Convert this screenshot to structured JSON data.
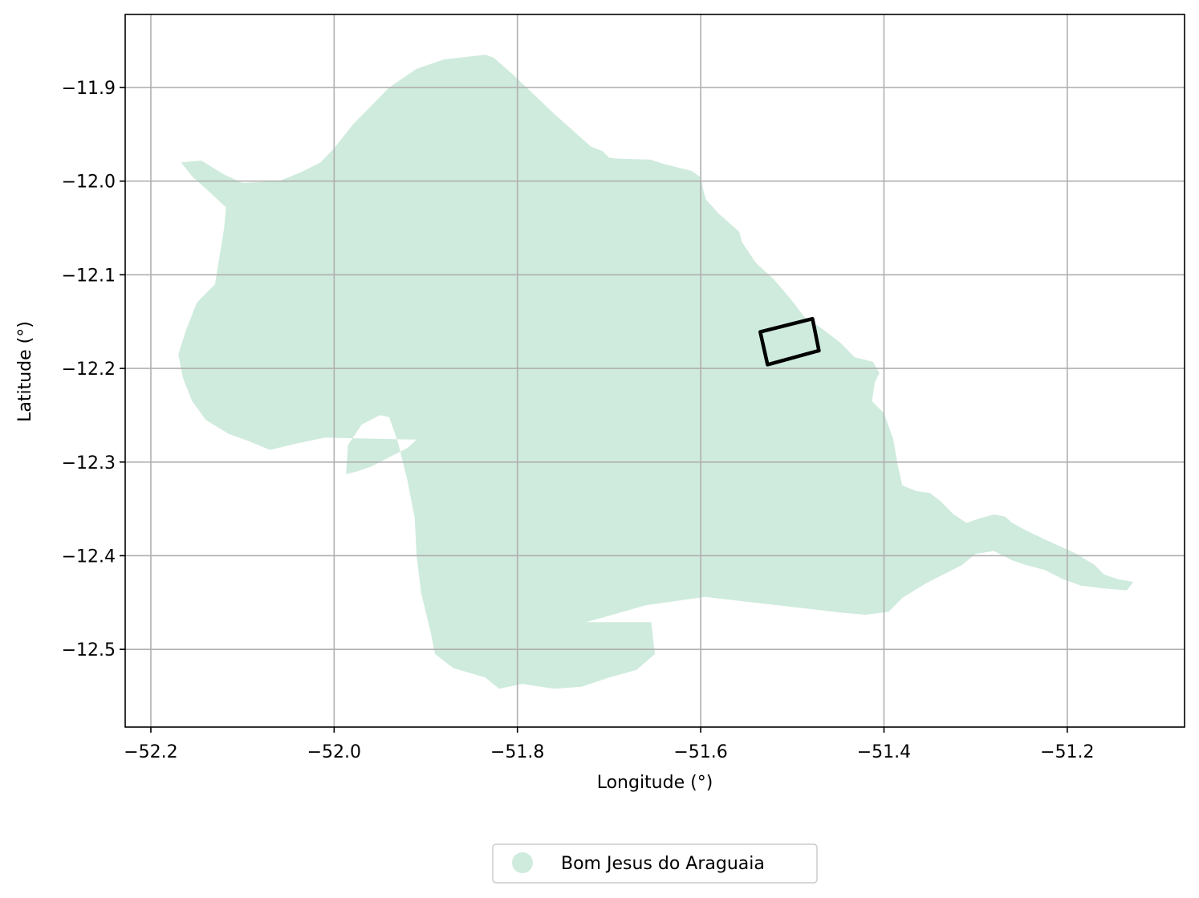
{
  "chart_data": {
    "type": "map",
    "xlabel": "Longitude (°)",
    "ylabel": "Latitude (°)",
    "xlim": [
      -52.228,
      -51.072
    ],
    "ylim": [
      -12.583,
      -11.822
    ],
    "grid": true,
    "legend_placement": "bottom-center",
    "x_ticks": [
      {
        "value": -52.2,
        "label": "−52.2"
      },
      {
        "value": -52.0,
        "label": "−52.0"
      },
      {
        "value": -51.8,
        "label": "−51.8"
      },
      {
        "value": -51.6,
        "label": "−51.6"
      },
      {
        "value": -51.4,
        "label": "−51.4"
      },
      {
        "value": -51.2,
        "label": "−51.2"
      }
    ],
    "y_ticks": [
      {
        "value": -11.9,
        "label": "−11.9"
      },
      {
        "value": -12.0,
        "label": "−12.0"
      },
      {
        "value": -12.1,
        "label": "−12.1"
      },
      {
        "value": -12.2,
        "label": "−12.2"
      },
      {
        "value": -12.3,
        "label": "−12.3"
      },
      {
        "value": -12.4,
        "label": "−12.4"
      },
      {
        "value": -12.5,
        "label": "−12.5"
      }
    ],
    "layers": [
      {
        "name": "Bom Jesus do Araguaia",
        "color": "#cfebdd",
        "polygon": [
          [
            -51.835,
            -11.865
          ],
          [
            -51.826,
            -11.868
          ],
          [
            -51.805,
            -11.886
          ],
          [
            -51.76,
            -11.928
          ],
          [
            -51.72,
            -11.963
          ],
          [
            -51.707,
            -11.968
          ],
          [
            -51.7,
            -11.975
          ],
          [
            -51.69,
            -11.976
          ],
          [
            -51.655,
            -11.977
          ],
          [
            -51.639,
            -11.982
          ],
          [
            -51.61,
            -11.989
          ],
          [
            -51.6,
            -11.996
          ],
          [
            -51.597,
            -12.01
          ],
          [
            -51.594,
            -12.02
          ],
          [
            -51.58,
            -12.035
          ],
          [
            -51.558,
            -12.054
          ],
          [
            -51.555,
            -12.065
          ],
          [
            -51.54,
            -12.087
          ],
          [
            -51.52,
            -12.105
          ],
          [
            -51.5,
            -12.128
          ],
          [
            -51.487,
            -12.145
          ],
          [
            -51.467,
            -12.158
          ],
          [
            -51.447,
            -12.173
          ],
          [
            -51.432,
            -12.188
          ],
          [
            -51.412,
            -12.193
          ],
          [
            -51.405,
            -12.205
          ],
          [
            -51.41,
            -12.215
          ],
          [
            -51.413,
            -12.235
          ],
          [
            -51.4,
            -12.248
          ],
          [
            -51.39,
            -12.275
          ],
          [
            -51.385,
            -12.303
          ],
          [
            -51.38,
            -12.325
          ],
          [
            -51.365,
            -12.331
          ],
          [
            -51.35,
            -12.333
          ],
          [
            -51.338,
            -12.342
          ],
          [
            -51.325,
            -12.355
          ],
          [
            -51.31,
            -12.365
          ],
          [
            -51.295,
            -12.36
          ],
          [
            -51.28,
            -12.356
          ],
          [
            -51.268,
            -12.358
          ],
          [
            -51.26,
            -12.365
          ],
          [
            -51.245,
            -12.373
          ],
          [
            -51.228,
            -12.381
          ],
          [
            -51.21,
            -12.389
          ],
          [
            -51.19,
            -12.398
          ],
          [
            -51.17,
            -12.41
          ],
          [
            -51.16,
            -12.42
          ],
          [
            -51.145,
            -12.425
          ],
          [
            -51.128,
            -12.428
          ],
          [
            -51.135,
            -12.437
          ],
          [
            -51.16,
            -12.435
          ],
          [
            -51.185,
            -12.432
          ],
          [
            -51.205,
            -12.425
          ],
          [
            -51.225,
            -12.415
          ],
          [
            -51.245,
            -12.41
          ],
          [
            -51.26,
            -12.405
          ],
          [
            -51.28,
            -12.395
          ],
          [
            -51.3,
            -12.398
          ],
          [
            -51.315,
            -12.41
          ],
          [
            -51.335,
            -12.42
          ],
          [
            -51.355,
            -12.43
          ],
          [
            -51.38,
            -12.445
          ],
          [
            -51.395,
            -12.46
          ],
          [
            -51.42,
            -12.463
          ],
          [
            -51.445,
            -12.461
          ],
          [
            -51.595,
            -12.444
          ],
          [
            -51.66,
            -12.453
          ],
          [
            -51.725,
            -12.471
          ],
          [
            -51.654,
            -12.471
          ],
          [
            -51.65,
            -12.505
          ],
          [
            -51.67,
            -12.522
          ],
          [
            -51.7,
            -12.53
          ],
          [
            -51.73,
            -12.54
          ],
          [
            -51.76,
            -12.542
          ],
          [
            -51.795,
            -12.537
          ],
          [
            -51.82,
            -12.542
          ],
          [
            -51.835,
            -12.53
          ],
          [
            -51.87,
            -12.52
          ],
          [
            -51.89,
            -12.505
          ],
          [
            -51.895,
            -12.48
          ],
          [
            -51.905,
            -12.44
          ],
          [
            -51.91,
            -12.4
          ],
          [
            -51.912,
            -12.36
          ],
          [
            -51.92,
            -12.32
          ],
          [
            -51.93,
            -12.28
          ],
          [
            -51.94,
            -12.252
          ],
          [
            -51.95,
            -12.25
          ],
          [
            -51.97,
            -12.26
          ],
          [
            -51.985,
            -12.282
          ],
          [
            -51.987,
            -12.313
          ],
          [
            -51.975,
            -12.31
          ],
          [
            -51.96,
            -12.305
          ],
          [
            -51.94,
            -12.295
          ],
          [
            -51.92,
            -12.285
          ],
          [
            -51.91,
            -12.276
          ],
          [
            -52.01,
            -12.274
          ],
          [
            -52.04,
            -12.28
          ],
          [
            -52.07,
            -12.287
          ],
          [
            -52.095,
            -12.277
          ],
          [
            -52.115,
            -12.27
          ],
          [
            -52.14,
            -12.255
          ],
          [
            -52.155,
            -12.235
          ],
          [
            -52.165,
            -12.21
          ],
          [
            -52.17,
            -12.185
          ],
          [
            -52.162,
            -12.16
          ],
          [
            -52.15,
            -12.13
          ],
          [
            -52.13,
            -12.11
          ],
          [
            -52.125,
            -12.08
          ],
          [
            -52.12,
            -12.05
          ],
          [
            -52.118,
            -12.028
          ],
          [
            -52.14,
            -12.008
          ],
          [
            -52.155,
            -11.995
          ],
          [
            -52.167,
            -11.98
          ],
          [
            -52.145,
            -11.978
          ],
          [
            -52.12,
            -11.993
          ],
          [
            -52.1,
            -12.002
          ],
          [
            -52.06,
            -12.0
          ],
          [
            -52.035,
            -11.99
          ],
          [
            -52.015,
            -11.98
          ],
          [
            -52.0,
            -11.965
          ],
          [
            -51.98,
            -11.94
          ],
          [
            -51.96,
            -11.92
          ],
          [
            -51.94,
            -11.9
          ],
          [
            -51.91,
            -11.88
          ],
          [
            -51.88,
            -11.87
          ]
        ]
      }
    ],
    "outline": {
      "polygon": [
        [
          -51.535,
          -12.161
        ],
        [
          -51.478,
          -12.147
        ],
        [
          -51.471,
          -12.181
        ],
        [
          -51.527,
          -12.196
        ]
      ]
    },
    "legend": {
      "label": "Bom Jesus do Araguaia"
    }
  }
}
